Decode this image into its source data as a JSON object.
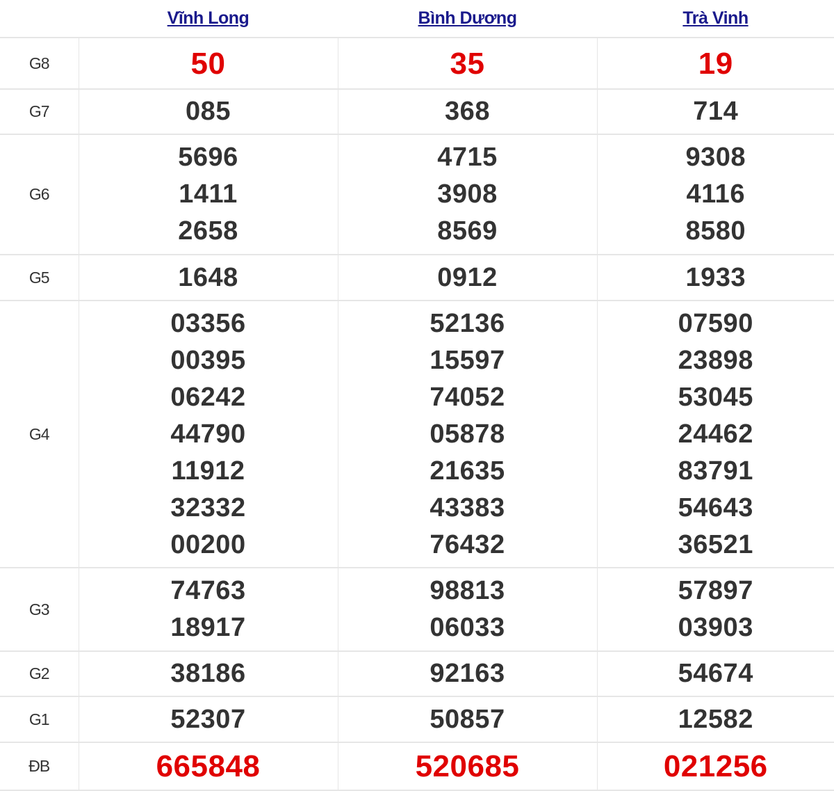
{
  "provinces": [
    "Vĩnh Long",
    "Bình Dương",
    "Trà Vinh"
  ],
  "colors": {
    "highlight": "#e00000",
    "text": "#333333",
    "link": "#1a1a8c"
  },
  "rows": [
    {
      "label": "G8",
      "highlight": true,
      "values": [
        [
          "50"
        ],
        [
          "35"
        ],
        [
          "19"
        ]
      ]
    },
    {
      "label": "G7",
      "values": [
        [
          "085"
        ],
        [
          "368"
        ],
        [
          "714"
        ]
      ]
    },
    {
      "label": "G6",
      "values": [
        [
          "5696",
          "1411",
          "2658"
        ],
        [
          "4715",
          "3908",
          "8569"
        ],
        [
          "9308",
          "4116",
          "8580"
        ]
      ]
    },
    {
      "label": "G5",
      "values": [
        [
          "1648"
        ],
        [
          "0912"
        ],
        [
          "1933"
        ]
      ]
    },
    {
      "label": "G4",
      "values": [
        [
          "03356",
          "00395",
          "06242",
          "44790",
          "11912",
          "32332",
          "00200"
        ],
        [
          "52136",
          "15597",
          "74052",
          "05878",
          "21635",
          "43383",
          "76432"
        ],
        [
          "07590",
          "23898",
          "53045",
          "24462",
          "83791",
          "54643",
          "36521"
        ]
      ]
    },
    {
      "label": "G3",
      "values": [
        [
          "74763",
          "18917"
        ],
        [
          "98813",
          "06033"
        ],
        [
          "57897",
          "03903"
        ]
      ]
    },
    {
      "label": "G2",
      "values": [
        [
          "38186"
        ],
        [
          "92163"
        ],
        [
          "54674"
        ]
      ]
    },
    {
      "label": "G1",
      "values": [
        [
          "52307"
        ],
        [
          "50857"
        ],
        [
          "12582"
        ]
      ]
    },
    {
      "label": "ĐB",
      "highlight": true,
      "values": [
        [
          "665848"
        ],
        [
          "520685"
        ],
        [
          "021256"
        ]
      ]
    }
  ]
}
